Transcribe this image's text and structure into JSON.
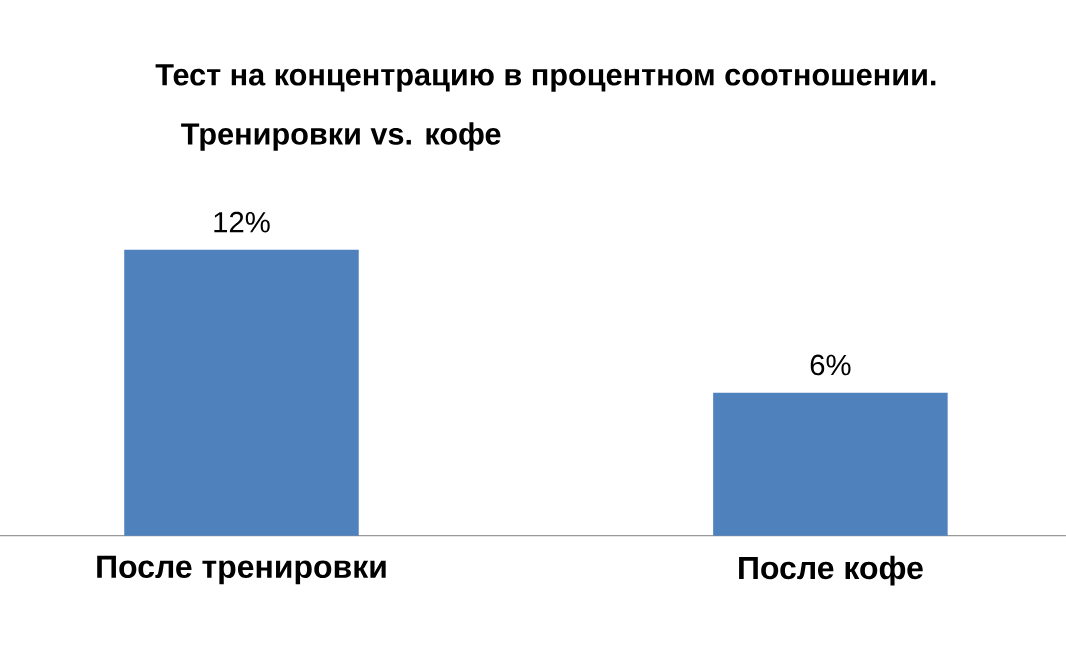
{
  "chart_data": {
    "type": "bar",
    "title": "Тест на концентрацию в процентном соотношении.",
    "subtitle": "Тренировки vs. кофе",
    "categories": [
      "После тренировки",
      "После кофе"
    ],
    "values": [
      12,
      6
    ],
    "value_labels": [
      "12%",
      "6%"
    ],
    "color": "#4f81bd"
  }
}
